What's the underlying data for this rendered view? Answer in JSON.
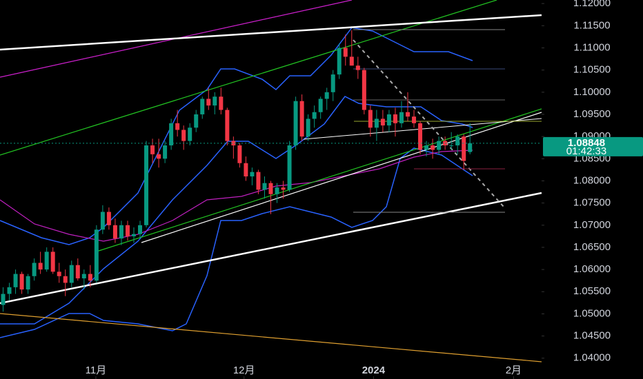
{
  "chart_data": {
    "type": "candlestick",
    "open": [
      1.052,
      1.0545,
      1.056,
      1.059,
      1.0555,
      1.0585,
      1.0615,
      1.06,
      1.064,
      1.0595,
      1.0585,
      1.057,
      1.061,
      1.058,
      1.059,
      1.0575,
      1.069,
      1.073,
      1.07,
      1.067,
      1.07,
      1.0675,
      1.068,
      1.07,
      1.088,
      1.086,
      1.085,
      1.088,
      1.093,
      1.0915,
      1.089,
      1.092,
      1.095,
      1.0985,
      1.097,
      1.099,
      1.096,
      1.089,
      1.088,
      1.084,
      1.081,
      1.082,
      1.078,
      1.0795,
      1.077,
      1.0785,
      1.078,
      1.088,
      1.098,
      1.09,
      1.094,
      1.0955,
      1.0985,
      1.1,
      1.104,
      1.11,
      1.108,
      1.106,
      1.105,
      1.096,
      1.092,
      1.094,
      1.0925,
      1.095,
      1.093,
      1.0955,
      1.0945,
      1.093,
      1.087,
      1.088,
      1.087,
      1.089,
      1.088,
      1.088,
      1.09,
      1.0865
    ],
    "high": [
      1.056,
      1.057,
      1.06,
      1.0595,
      1.059,
      1.0625,
      1.064,
      1.065,
      1.065,
      1.0615,
      1.06,
      1.062,
      1.0625,
      1.06,
      1.061,
      1.07,
      1.0745,
      1.074,
      1.0715,
      1.071,
      1.071,
      1.0695,
      1.071,
      1.089,
      1.0895,
      1.0895,
      1.089,
      1.094,
      1.096,
      1.0925,
      1.093,
      1.096,
      1.099,
      1.101,
      1.1,
      1.101,
      1.0965,
      1.09,
      1.0885,
      1.0855,
      1.083,
      1.0825,
      1.081,
      1.08,
      1.0795,
      1.08,
      1.089,
      1.099,
      1.0995,
      1.095,
      1.097,
      1.099,
      1.101,
      1.105,
      1.111,
      1.113,
      1.114,
      1.108,
      1.1055,
      1.097,
      1.096,
      1.096,
      1.096,
      1.0965,
      1.098,
      1.1,
      1.096,
      1.0935,
      1.089,
      1.0895,
      1.09,
      1.09,
      1.091,
      1.0905,
      1.0905,
      1.093
    ],
    "low": [
      1.0505,
      1.053,
      1.0545,
      1.0545,
      1.0545,
      1.0575,
      1.059,
      1.0595,
      1.059,
      1.057,
      1.054,
      1.056,
      1.0575,
      1.0555,
      1.056,
      1.057,
      1.068,
      1.069,
      1.066,
      1.0655,
      1.0665,
      1.066,
      1.067,
      1.0695,
      1.084,
      1.083,
      1.084,
      1.087,
      1.09,
      1.087,
      1.088,
      1.091,
      1.094,
      1.096,
      1.095,
      1.095,
      1.088,
      1.085,
      1.083,
      1.08,
      1.079,
      1.077,
      1.076,
      1.0725,
      1.075,
      1.076,
      1.0775,
      1.087,
      1.089,
      1.089,
      1.092,
      1.094,
      1.096,
      1.098,
      1.103,
      1.106,
      1.106,
      1.103,
      1.095,
      1.09,
      1.089,
      1.091,
      1.091,
      1.09,
      1.092,
      1.0935,
      1.092,
      1.086,
      1.0855,
      1.085,
      1.086,
      1.087,
      1.087,
      1.086,
      1.0825,
      1.086
    ],
    "close": [
      1.0545,
      1.056,
      1.059,
      1.0555,
      1.0585,
      1.0615,
      1.06,
      1.064,
      1.0595,
      1.0585,
      1.057,
      1.061,
      1.058,
      1.059,
      1.0575,
      1.069,
      1.073,
      1.07,
      1.067,
      1.07,
      1.0675,
      1.068,
      1.07,
      1.088,
      1.086,
      1.085,
      1.088,
      1.093,
      1.0915,
      1.089,
      1.092,
      1.095,
      1.0985,
      1.097,
      1.099,
      1.096,
      1.089,
      1.088,
      1.084,
      1.081,
      1.082,
      1.078,
      1.0795,
      1.077,
      1.0785,
      1.078,
      1.088,
      1.098,
      1.09,
      1.094,
      1.0955,
      1.0985,
      1.1,
      1.104,
      1.11,
      1.108,
      1.106,
      1.105,
      1.096,
      1.092,
      1.094,
      1.0925,
      1.095,
      1.093,
      1.0955,
      1.0945,
      1.093,
      1.087,
      1.088,
      1.087,
      1.089,
      1.088,
      1.088,
      1.09,
      1.0845,
      1.08848
    ],
    "up_color": "#089981",
    "down_color": "#f23645",
    "countdown": "01:42:33",
    "ylim": [
      1.0353,
      1.1208
    ],
    "yticks": [
      {
        "value": 1.04,
        "label": "1.04000"
      },
      {
        "value": 1.045,
        "label": "1.04500"
      },
      {
        "value": 1.05,
        "label": "1.05000"
      },
      {
        "value": 1.055,
        "label": "1.05500"
      },
      {
        "value": 1.06,
        "label": "1.06000"
      },
      {
        "value": 1.065,
        "label": "1.06500"
      },
      {
        "value": 1.07,
        "label": "1.07000"
      },
      {
        "value": 1.075,
        "label": "1.07500"
      },
      {
        "value": 1.08,
        "label": "1.08000"
      },
      {
        "value": 1.085,
        "label": "1.08500"
      },
      {
        "value": 1.09,
        "label": "1.09000"
      },
      {
        "value": 1.095,
        "label": "1.09500"
      },
      {
        "value": 1.1,
        "label": "1.10000"
      },
      {
        "value": 1.105,
        "label": "1.10500"
      },
      {
        "value": 1.11,
        "label": "1.11000"
      },
      {
        "value": 1.115,
        "label": "1.11500"
      },
      {
        "value": 1.12,
        "label": "1.12000"
      }
    ],
    "xlim": [
      -0.5,
      86.5
    ],
    "xticks": [
      {
        "value": 14.9,
        "label": "11月"
      },
      {
        "value": 38.7,
        "label": "12月"
      },
      {
        "value": 59.5,
        "label": "2024"
      },
      {
        "value": 82,
        "label": "2月"
      }
    ]
  }
}
